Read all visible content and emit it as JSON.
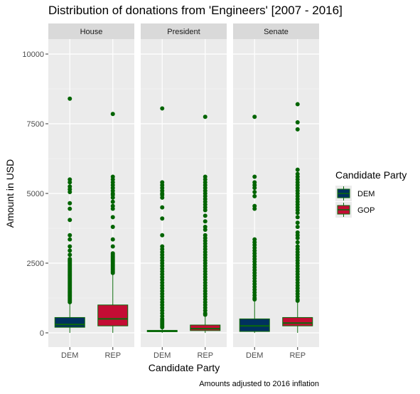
{
  "chart_data": {
    "type": "box",
    "title": "Distribution of donations from 'Engineers' [2007 - 2016]",
    "xlabel": "Candidate Party",
    "ylabel": "Amount in USD",
    "caption": "Amounts adjusted to 2016 inflation",
    "ylim": [
      -450,
      10700
    ],
    "y_ticks": [
      0,
      2500,
      5000,
      7500,
      10000
    ],
    "grid": true,
    "legend": {
      "title": "Candidate Party",
      "position": "right",
      "items": [
        {
          "label": "DEM",
          "color": "#00315f"
        },
        {
          "label": "GOP",
          "color": "#c40c34"
        }
      ]
    },
    "colors": {
      "DEM": "#00315f",
      "GOP": "#c40c34",
      "outline": "#0b6a0b",
      "outlier": "#006400",
      "panel_bg": "#ebebeb",
      "strip_bg": "#d9d9d9"
    },
    "panels": [
      {
        "label": "House",
        "categories": [
          "DEM",
          "REP"
        ],
        "boxes": [
          {
            "category": "DEM",
            "party": "DEM",
            "min": 0,
            "q1": 200,
            "median": 300,
            "q3": 550,
            "max": 1050,
            "outliers": [
              8400,
              5500,
              5400,
              5250,
              5150,
              5050,
              4650,
              4450,
              4050,
              3500,
              3350,
              3100,
              2950,
              2800,
              2650,
              2600,
              2550,
              2500,
              2450,
              2400,
              2350,
              2300,
              2250,
              2200,
              2150,
              2100,
              2050,
              2000,
              1950,
              1900,
              1850,
              1800,
              1750,
              1700,
              1650,
              1600,
              1550,
              1500,
              1450,
              1400,
              1350,
              1300,
              1250,
              1200,
              1150,
              1100
            ]
          },
          {
            "category": "REP",
            "party": "GOP",
            "min": 0,
            "q1": 250,
            "median": 500,
            "q3": 1000,
            "max": 2100,
            "outliers": [
              7850,
              5600,
              5500,
              5400,
              5300,
              5200,
              5100,
              5000,
              4950,
              4850,
              4700,
              4550,
              4450,
              4150,
              3800,
              3350,
              3100,
              2850,
              2800,
              2750,
              2700,
              2650,
              2600,
              2550,
              2500,
              2450,
              2400,
              2350,
              2300,
              2250,
              2200,
              2150
            ]
          }
        ]
      },
      {
        "label": "President",
        "categories": [
          "DEM",
          "REP"
        ],
        "boxes": [
          {
            "category": "DEM",
            "party": "DEM",
            "min": 0,
            "q1": 40,
            "median": 60,
            "q3": 90,
            "max": 150,
            "outliers": [
              8050,
              5400,
              5300,
              5200,
              5100,
              5000,
              4950,
              4850,
              4500,
              4100,
              3500,
              3100,
              3000,
              2900,
              2800,
              2700,
              2600,
              2500,
              2400,
              2300,
              2200,
              2100,
              2000,
              1900,
              1800,
              1700,
              1600,
              1500,
              1400,
              1300,
              1200,
              1100,
              1000,
              900,
              800,
              700,
              600,
              500,
              450,
              400,
              350,
              300,
              250,
              200
            ]
          },
          {
            "category": "REP",
            "party": "GOP",
            "min": 0,
            "q1": 80,
            "median": 150,
            "q3": 280,
            "max": 600,
            "outliers": [
              7750,
              5600,
              5500,
              5400,
              5300,
              5200,
              5100,
              5000,
              4900,
              4800,
              4700,
              4600,
              4500,
              4400,
              4200,
              4000,
              3800,
              3700,
              3500,
              3400,
              3300,
              3200,
              3100,
              3000,
              2900,
              2800,
              2700,
              2600,
              2500,
              2400,
              2300,
              2200,
              2100,
              2000,
              1900,
              1800,
              1700,
              1600,
              1500,
              1400,
              1300,
              1200,
              1100,
              1000,
              900,
              800,
              700,
              650
            ]
          }
        ]
      },
      {
        "label": "Senate",
        "categories": [
          "DEM",
          "REP"
        ],
        "boxes": [
          {
            "category": "DEM",
            "party": "DEM",
            "min": 0,
            "q1": 50,
            "median": 250,
            "q3": 500,
            "max": 1150,
            "outliers": [
              7750,
              5600,
              5400,
              5300,
              5200,
              5050,
              4900,
              4550,
              4450,
              3350,
              3250,
              3150,
              3050,
              2950,
              2850,
              2750,
              2650,
              2550,
              2450,
              2350,
              2250,
              2150,
              2050,
              1950,
              1850,
              1750,
              1650,
              1550,
              1450,
              1350,
              1250,
              1200
            ]
          },
          {
            "category": "REP",
            "party": "GOP",
            "min": 0,
            "q1": 250,
            "median": 350,
            "q3": 550,
            "max": 1100,
            "outliers": [
              8200,
              7550,
              7300,
              5850,
              5700,
              5600,
              5500,
              5400,
              5300,
              5200,
              5100,
              5000,
              4900,
              4800,
              4700,
              4600,
              4500,
              4400,
              4300,
              4150,
              3950,
              3800,
              3600,
              3500,
              3400,
              3250,
              3100,
              3000,
              2900,
              2800,
              2700,
              2600,
              2500,
              2400,
              2300,
              2200,
              2100,
              2000,
              1900,
              1800,
              1700,
              1600,
              1500,
              1400,
              1300,
              1200,
              1150
            ]
          }
        ]
      }
    ]
  }
}
